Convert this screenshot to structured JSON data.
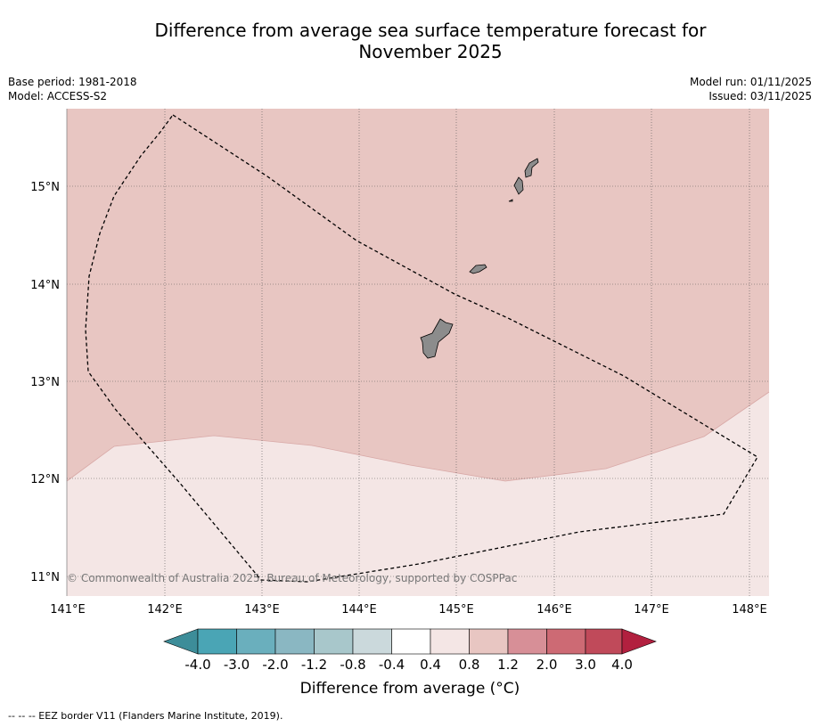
{
  "title_line1": "Difference from average sea surface temperature forecast for",
  "title_line2": "November 2025",
  "base_period": "Base period: 1981-2018",
  "model": "Model: ACCESS-S2",
  "model_run": "Model run: 01/11/2025",
  "issued": "Issued: 03/11/2025",
  "copyright": "© Commonwealth of Australia 2025, Bureau of Meteorology, supported by COSPPac",
  "lon_labels": [
    "141°E",
    "142°E",
    "143°E",
    "144°E",
    "145°E",
    "146°E",
    "147°E",
    "148°E"
  ],
  "lat_labels": [
    "15°N",
    "14°N",
    "13°N",
    "12°N",
    "11°N"
  ],
  "colorbar": {
    "ticks": [
      "-4.0",
      "-3.0",
      "-2.0",
      "-1.2",
      "-0.8",
      "-0.4",
      "0.4",
      "0.8",
      "1.2",
      "2.0",
      "3.0",
      "4.0"
    ],
    "colors": [
      "#4aa5b5",
      "#6aafbd",
      "#8ab7c2",
      "#a8c7cb",
      "#cbd9dc",
      "#ffffff",
      "#f4e6e5",
      "#e8c6c2",
      "#d78f97",
      "#cd6a74",
      "#c04a5a"
    ],
    "under_color": "#3d8d99",
    "over_color": "#b2203f",
    "label": "Difference from average (°C)"
  },
  "legend_footnote": "--  --  -- EEZ border V11 (Flanders Marine Institute, 2019).",
  "colors": {
    "fill_0_8_to_1_2": "#e8c6c2",
    "fill_0_4_to_0_8": "#f4e6e5",
    "land": "#8c8c8c"
  }
}
